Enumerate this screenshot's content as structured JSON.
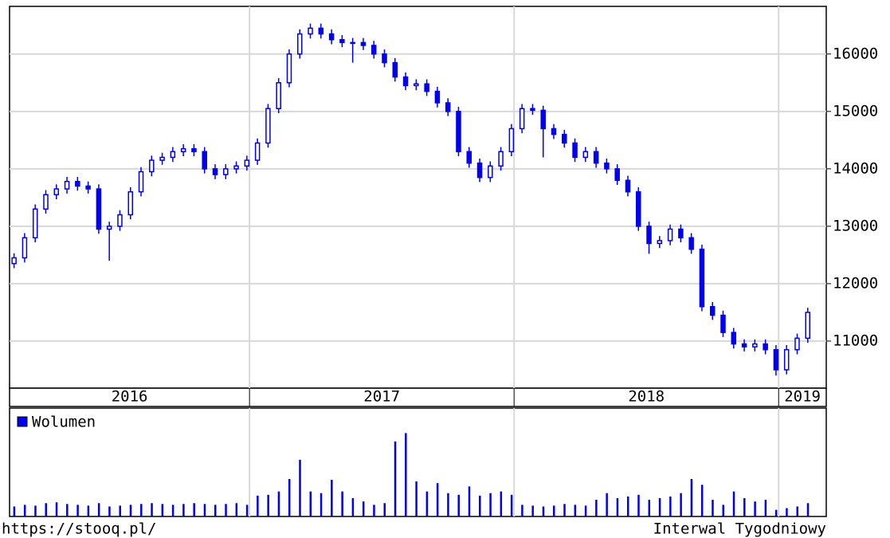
{
  "chart_data": {
    "type": "candlestick",
    "legend": "Wolumen",
    "source": "https://stooq.pl/",
    "interval": "Interwal Tygodniowy",
    "color": "#0000ee",
    "grid": true,
    "xlim": [
      2016.093,
      2019.18
    ],
    "xticks": [
      2016,
      2017,
      2018,
      2019
    ],
    "ylim": [
      10180,
      16830
    ],
    "yticks": [
      11000,
      12000,
      13000,
      14000,
      15000,
      16000
    ],
    "volume_ylim": [
      0,
      130
    ],
    "x": [
      2016.11,
      2016.15,
      2016.19,
      2016.23,
      2016.27,
      2016.31,
      2016.35,
      2016.39,
      2016.43,
      2016.47,
      2016.51,
      2016.55,
      2016.59,
      2016.63,
      2016.67,
      2016.71,
      2016.75,
      2016.79,
      2016.83,
      2016.87,
      2016.91,
      2016.95,
      2016.99,
      2017.03,
      2017.07,
      2017.11,
      2017.15,
      2017.19,
      2017.23,
      2017.27,
      2017.31,
      2017.35,
      2017.39,
      2017.43,
      2017.47,
      2017.51,
      2017.55,
      2017.59,
      2017.63,
      2017.67,
      2017.71,
      2017.75,
      2017.79,
      2017.83,
      2017.87,
      2017.91,
      2017.95,
      2017.99,
      2018.03,
      2018.07,
      2018.11,
      2018.15,
      2018.19,
      2018.23,
      2018.27,
      2018.31,
      2018.35,
      2018.39,
      2018.43,
      2018.47,
      2018.51,
      2018.55,
      2018.59,
      2018.63,
      2018.67,
      2018.71,
      2018.75,
      2018.79,
      2018.83,
      2018.87,
      2018.91,
      2018.95,
      2018.99,
      2019.03,
      2019.07,
      2019.11
    ],
    "open": [
      12350,
      12450,
      12800,
      13300,
      13550,
      13650,
      13780,
      13700,
      13650,
      12950,
      13000,
      13200,
      13600,
      13950,
      14150,
      14200,
      14300,
      14350,
      14300,
      14000,
      13900,
      14000,
      14050,
      14150,
      14450,
      15050,
      15500,
      16000,
      16350,
      16450,
      16350,
      16250,
      16200,
      16200,
      16150,
      16000,
      15850,
      15600,
      15450,
      15480,
      15350,
      15150,
      15000,
      14300,
      14100,
      13850,
      14050,
      14300,
      14700,
      15050,
      15020,
      14700,
      14600,
      14450,
      14200,
      14300,
      14100,
      14000,
      13800,
      13600,
      13000,
      12700,
      12750,
      12950,
      12800,
      12600,
      11600,
      11450,
      11150,
      10950,
      10900,
      10950,
      10850,
      10500,
      10850,
      11050
    ],
    "high": [
      12530,
      12880,
      13380,
      13630,
      13730,
      13860,
      13860,
      13780,
      13730,
      13080,
      13280,
      13680,
      14030,
      14230,
      14280,
      14380,
      14430,
      14430,
      14380,
      14080,
      14080,
      14130,
      14230,
      14530,
      15130,
      15580,
      16080,
      16430,
      16530,
      16530,
      16430,
      16330,
      16280,
      16280,
      16230,
      16080,
      15930,
      15680,
      15560,
      15560,
      15430,
      15230,
      15080,
      14380,
      14180,
      14130,
      14380,
      14780,
      15130,
      15130,
      15100,
      14780,
      14680,
      14530,
      14380,
      14380,
      14180,
      14080,
      13880,
      13680,
      13080,
      12830,
      13030,
      13030,
      12880,
      12680,
      11680,
      11530,
      11230,
      11030,
      11030,
      11030,
      10930,
      10930,
      11130,
      11580
    ],
    "low": [
      12270,
      12370,
      12720,
      13220,
      13470,
      13570,
      13620,
      13570,
      12870,
      12400,
      12920,
      13120,
      13520,
      13870,
      14070,
      14120,
      14220,
      14220,
      13920,
      13820,
      13820,
      13920,
      13970,
      14070,
      14370,
      14970,
      15420,
      15920,
      16270,
      16270,
      16170,
      16120,
      15850,
      16070,
      15920,
      15770,
      15520,
      15370,
      15370,
      15270,
      15070,
      14920,
      14220,
      14020,
      13770,
      13770,
      13970,
      14220,
      14620,
      14940,
      14200,
      14520,
      14370,
      14120,
      14120,
      14020,
      13920,
      13720,
      13520,
      12920,
      12520,
      12620,
      12670,
      12720,
      12520,
      11520,
      11370,
      11070,
      10870,
      10820,
      10820,
      10770,
      10400,
      10420,
      10770,
      10970
    ],
    "close": [
      12450,
      12800,
      13300,
      13550,
      13650,
      13780,
      13700,
      13650,
      12950,
      13000,
      13200,
      13600,
      13950,
      14150,
      14200,
      14300,
      14350,
      14300,
      14000,
      13900,
      14000,
      14050,
      14150,
      14450,
      15050,
      15500,
      16000,
      16350,
      16450,
      16350,
      16250,
      16200,
      16200,
      16150,
      16000,
      15850,
      15600,
      15450,
      15480,
      15350,
      15150,
      15000,
      14300,
      14100,
      13850,
      14050,
      14300,
      14700,
      15050,
      15020,
      14700,
      14600,
      14450,
      14200,
      14300,
      14100,
      14000,
      13800,
      13600,
      13000,
      12700,
      12750,
      12950,
      12800,
      12600,
      11600,
      11450,
      11150,
      10950,
      10900,
      10950,
      10850,
      10500,
      10850,
      11050,
      11500
    ],
    "volume": [
      12,
      14,
      13,
      16,
      17,
      15,
      14,
      13,
      16,
      12,
      13,
      14,
      15,
      16,
      15,
      14,
      15,
      16,
      15,
      14,
      15,
      16,
      14,
      25,
      26,
      30,
      45,
      68,
      30,
      28,
      44,
      30,
      22,
      18,
      14,
      16,
      90,
      100,
      42,
      30,
      40,
      28,
      26,
      36,
      25,
      28,
      30,
      26,
      14,
      13,
      12,
      13,
      15,
      14,
      13,
      20,
      28,
      22,
      24,
      26,
      20,
      22,
      24,
      28,
      45,
      38,
      20,
      14,
      30,
      22,
      18,
      20,
      8,
      10,
      12,
      16
    ]
  }
}
